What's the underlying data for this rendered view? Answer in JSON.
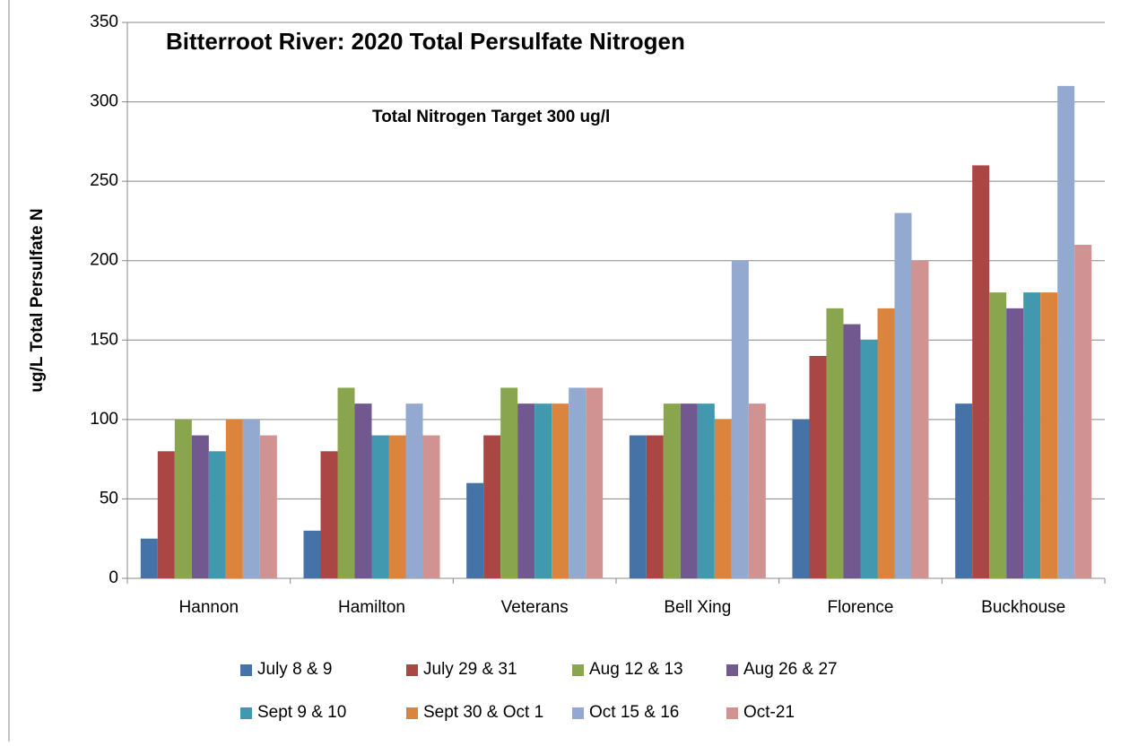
{
  "chart_data": {
    "type": "bar",
    "title": "Bitterroot River: 2020 Total Persulfate Nitrogen",
    "annotation": "Total Nitrogen Target 300 ug/l",
    "y_label": "ug/L Total Persulfate N",
    "categories": [
      "Hannon",
      "Hamilton",
      "Veterans",
      "Bell Xing",
      "Florence",
      "Buckhouse"
    ],
    "series": [
      {
        "name": "July 8 & 9",
        "color": "#4572a7",
        "values": [
          25,
          30,
          60,
          90,
          100,
          110
        ]
      },
      {
        "name": "July 29 & 31",
        "color": "#aa4643",
        "values": [
          80,
          80,
          90,
          90,
          140,
          260
        ]
      },
      {
        "name": "Aug 12 & 13",
        "color": "#89a54e",
        "values": [
          100,
          120,
          120,
          110,
          170,
          180
        ]
      },
      {
        "name": "Aug 26 & 27",
        "color": "#71588f",
        "values": [
          90,
          110,
          110,
          110,
          160,
          170
        ]
      },
      {
        "name": "Sept 9 & 10",
        "color": "#4198af",
        "values": [
          80,
          90,
          110,
          110,
          150,
          180
        ]
      },
      {
        "name": "Sept 30 & Oct 1",
        "color": "#db843d",
        "values": [
          100,
          90,
          110,
          100,
          170,
          180
        ]
      },
      {
        "name": "Oct 15 & 16",
        "color": "#93a9cf",
        "values": [
          100,
          110,
          120,
          200,
          230,
          310
        ]
      },
      {
        "name": "Oct-21",
        "color": "#d19392",
        "values": [
          90,
          90,
          120,
          110,
          200,
          210
        ]
      }
    ],
    "ylim": [
      0,
      350
    ],
    "yticks": [
      0,
      50,
      100,
      150,
      200,
      250,
      300,
      350
    ],
    "grid": true
  }
}
